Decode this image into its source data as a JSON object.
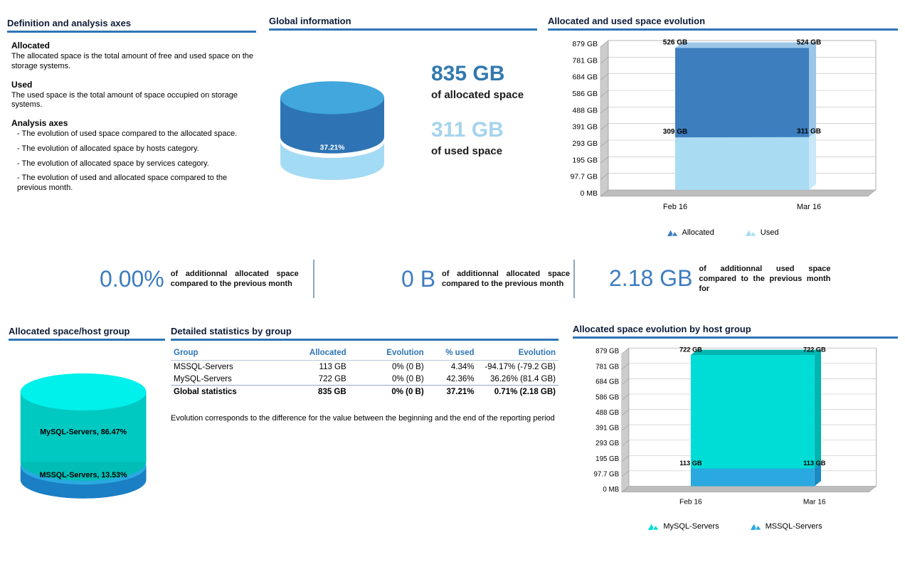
{
  "theme": {
    "accent_color": "#2e75b6",
    "stat_number_color": "#3d7cc0",
    "allocated_number_color": "#3279ae",
    "used_number_color": "#a6d3ec"
  },
  "definitions": {
    "title": "Definition and analysis axes",
    "sections": [
      {
        "heading": "Allocated",
        "body": "The allocated space is the total amount of free and used space on the storage systems."
      },
      {
        "heading": "Used",
        "body": "The used space is the total amount of space occupied on storage systems."
      },
      {
        "heading": "Analysis axes",
        "bullets": [
          "- The evolution of used space compared to the allocated space.",
          "- The evolution of allocated space by hosts category.",
          "- The evolution of allocated space by services category.",
          "- The evolution of used and allocated space compared to the previous month."
        ]
      }
    ]
  },
  "global_info": {
    "title": "Global information",
    "gauge_percent": "37.21%",
    "allocated_value": "835 GB",
    "allocated_label": "of allocated space",
    "used_value": "311 GB",
    "used_label": "of used space"
  },
  "stats": [
    {
      "value": "0.00%",
      "text": "of additionnal allocated space compared to the previous month"
    },
    {
      "value": "0 B",
      "text": "of additionnal allocated space compared to the previous month"
    },
    {
      "value": "2.18 GB",
      "text": "of additionnal used space compared to the previous month for"
    }
  ],
  "host_group_pie": {
    "title": "Allocated space/host group",
    "slices": [
      {
        "label": "MySQL-Servers, 86.47%",
        "color": "#00c9c2",
        "top_color": "#00f0ec",
        "percent": 86.47
      },
      {
        "label": "MSSQL-Servers, 13.53%",
        "color": "#29a9e0",
        "bottom_color": "#1a7fc4",
        "percent": 13.53
      }
    ]
  },
  "table": {
    "title": "Detailed statistics by group",
    "columns": [
      "Group",
      "Allocated",
      "Evolution",
      "% used",
      "Evolution"
    ],
    "rows": [
      [
        "MSSQL-Servers",
        "113 GB",
        "0% (0 B)",
        "4.34%",
        "-94.17% (-79.2 GB)"
      ],
      [
        "MySQL-Servers",
        "722 GB",
        "0% (0 B)",
        "42.36%",
        "36.26% (81.4 GB)"
      ]
    ],
    "total_row": [
      "Global statistics",
      "835 GB",
      "0% (0 B)",
      "37.21%",
      "0.71% (2.18 GB)"
    ],
    "footnote": "Evolution corresponds to the difference for the value between the beginning and the end of the reporting period"
  },
  "chart_data": [
    {
      "id": "allocated-used-evolution",
      "type": "area",
      "stacked": true,
      "title": "Allocated and used space evolution",
      "x": [
        "Feb 16",
        "Mar 16"
      ],
      "ylim": [
        0,
        879
      ],
      "y_ticks": [
        {
          "label": "879 GB",
          "value": 879
        },
        {
          "label": "781 GB",
          "value": 781
        },
        {
          "label": "684 GB",
          "value": 684
        },
        {
          "label": "586 GB",
          "value": 586
        },
        {
          "label": "488 GB",
          "value": 488
        },
        {
          "label": "391 GB",
          "value": 391
        },
        {
          "label": "293 GB",
          "value": 293
        },
        {
          "label": "195 GB",
          "value": 195
        },
        {
          "label": "97.7 GB",
          "value": 97.7
        },
        {
          "label": "0 MB",
          "value": 0
        }
      ],
      "series": [
        {
          "name": "Used",
          "color": "#a9dcf2",
          "side_color": "#c9e9f8",
          "values": [
            309,
            311
          ],
          "labels": [
            "309 GB",
            "311 GB"
          ]
        },
        {
          "name": "Allocated",
          "color": "#3d7ebf",
          "side_color": "#9cc6e8",
          "values": [
            526,
            524
          ],
          "labels": [
            "526 GB",
            "524 GB"
          ]
        }
      ],
      "legend": [
        {
          "label": "Allocated",
          "color": "#3d7ebf"
        },
        {
          "label": "Used",
          "color": "#a9dcf2"
        }
      ]
    },
    {
      "id": "allocated-evolution-by-host-group",
      "type": "area",
      "stacked": true,
      "title": "Allocated space evolution by host group",
      "x": [
        "Feb 16",
        "Mar 16"
      ],
      "ylim": [
        0,
        879
      ],
      "y_ticks": [
        {
          "label": "879 GB",
          "value": 879
        },
        {
          "label": "781 GB",
          "value": 781
        },
        {
          "label": "684 GB",
          "value": 684
        },
        {
          "label": "586 GB",
          "value": 586
        },
        {
          "label": "488 GB",
          "value": 488
        },
        {
          "label": "391 GB",
          "value": 391
        },
        {
          "label": "293 GB",
          "value": 293
        },
        {
          "label": "195 GB",
          "value": 195
        },
        {
          "label": "97.7 GB",
          "value": 97.7
        },
        {
          "label": "0 MB",
          "value": 0
        }
      ],
      "series": [
        {
          "name": "MSSQL-Servers",
          "color": "#29a9e0",
          "side_color": "#1b8ac2",
          "values": [
            113,
            113
          ],
          "labels": [
            "113 GB",
            "113 GB"
          ]
        },
        {
          "name": "MySQL-Servers",
          "color": "#00dcd6",
          "side_color": "#00b5b0",
          "values": [
            722,
            722
          ],
          "labels": [
            "722 GB",
            "722 GB"
          ]
        }
      ],
      "legend": [
        {
          "label": "MySQL-Servers",
          "color": "#00dcd6"
        },
        {
          "label": "MSSQL-Servers",
          "color": "#29a9e0"
        }
      ]
    }
  ]
}
